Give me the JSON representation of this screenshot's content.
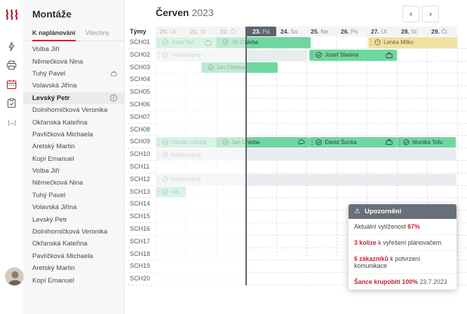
{
  "iconbar": {
    "icons": [
      "flash-icon",
      "printer-icon",
      "calendar-icon",
      "clipboard-icon",
      "resize-icon"
    ],
    "active_icon": "calendar-icon",
    "resize_glyph": "|↔|"
  },
  "sidebar": {
    "title": "Montáže",
    "tabs": [
      {
        "label": "K naplánování",
        "active": true
      },
      {
        "label": "Všechny",
        "active": false
      }
    ],
    "people": [
      {
        "name": "Volba Jiří"
      },
      {
        "name": "Němečková Nina"
      },
      {
        "name": "Tuhý Pavel",
        "briefcase": true
      },
      {
        "name": "Volavská Jiřina"
      },
      {
        "name": "Levský Petr",
        "selected": true,
        "info": true
      },
      {
        "name": "Dolnihorničková Veronika"
      },
      {
        "name": "Okřanská Kateřina"
      },
      {
        "name": "Pavlíčková Michaela"
      },
      {
        "name": "Aretský Martin"
      },
      {
        "name": "Kopí Emanuel"
      },
      {
        "name": "Volba Jiří"
      },
      {
        "name": "Němečková Nina"
      },
      {
        "name": "Tuhý Pavel"
      },
      {
        "name": "Volavská Jiřina"
      },
      {
        "name": "Levský Petr"
      },
      {
        "name": "Dolnihorničková Veronika"
      },
      {
        "name": "Okřanská Kateřina"
      },
      {
        "name": "Pavlíčková Michaela"
      },
      {
        "name": "Aretský Martin"
      },
      {
        "name": "Kopí Emanuel"
      }
    ]
  },
  "header": {
    "month": "Červen",
    "year": "2023",
    "prev": "‹",
    "next": "›"
  },
  "timeline": {
    "teams_label": "Týmy",
    "days": [
      {
        "num": "20.",
        "dow": "Út",
        "past": true
      },
      {
        "num": "21.",
        "dow": "St",
        "past": true
      },
      {
        "num": "22.",
        "dow": "Čt",
        "past": true
      },
      {
        "num": "23.",
        "dow": "Pá",
        "today": true
      },
      {
        "num": "24.",
        "dow": "So"
      },
      {
        "num": "25.",
        "dow": "Ne"
      },
      {
        "num": "26.",
        "dow": "Po"
      },
      {
        "num": "27.",
        "dow": "Út"
      },
      {
        "num": "28.",
        "dow": "St"
      },
      {
        "num": "29.",
        "dow": "Čt"
      }
    ],
    "rows": [
      "SCH01",
      "SCH02",
      "SCH03",
      "SCH04",
      "SCH05",
      "SCH06",
      "SCH07",
      "SCH08",
      "SCH09",
      "SCH10",
      "SCH11",
      "SCH12",
      "SCH13",
      "SCH14",
      "SCH15",
      "SCH16",
      "SCH17",
      "SCH18",
      "SCH19",
      "SCH20"
    ],
    "bars": [
      {
        "row": "SCH01",
        "start": 0,
        "end": 2,
        "label": "Josef Syr",
        "type": "light",
        "icon": "check",
        "right_icon": "briefcase"
      },
      {
        "row": "SCH01",
        "start": 2,
        "end": 5.15,
        "label": "Jiří Chleba",
        "type": "green",
        "icon": "check"
      },
      {
        "row": "SCH01",
        "start": 7.05,
        "end": 10,
        "label": "Lenka Milko",
        "type": "yellow",
        "icon": "alert"
      },
      {
        "row": "SCH02",
        "start": 0,
        "end": 5,
        "label": "Nedostupný",
        "type": "gray",
        "icon": "slash"
      },
      {
        "row": "SCH02",
        "start": 5.1,
        "end": 8,
        "label": "Josef Slanina",
        "type": "green",
        "icon": "check",
        "right_icon": "briefcase"
      },
      {
        "row": "SCH03",
        "start": 1.5,
        "end": 4.05,
        "label": "Jan Chleba",
        "type": "green",
        "icon": "check"
      },
      {
        "row": "SCH09",
        "start": 0,
        "end": 2,
        "label": "Václav Lampa",
        "type": "light",
        "icon": "check"
      },
      {
        "row": "SCH09",
        "start": 2,
        "end": 5.1,
        "label": "Jan Chleba",
        "type": "green",
        "icon": "check",
        "right_icon": "cloud"
      },
      {
        "row": "SCH09",
        "start": 5.1,
        "end": 8,
        "label": "David Šunka",
        "type": "green",
        "icon": "check",
        "right_icon": "briefcase"
      },
      {
        "row": "SCH09",
        "start": 8,
        "end": 9.95,
        "label": "Monika Tofu",
        "type": "green",
        "icon": "check"
      },
      {
        "row": "SCH10",
        "start": 0,
        "end": 9.95,
        "label": "Nedostupný",
        "type": "gray",
        "icon": "slash"
      },
      {
        "row": "SCH12",
        "start": 0,
        "end": 9.95,
        "label": "Nedostupný",
        "type": "gray",
        "icon": "slash"
      },
      {
        "row": "SCH13",
        "start": 0,
        "end": 1,
        "label": "Vá..",
        "type": "light",
        "icon": "check"
      }
    ],
    "today_index": 3
  },
  "notification": {
    "warn_icon": "⚠",
    "title": "Upozornění",
    "items": [
      {
        "pre": "Aktuální vytíženost ",
        "strong": "67%",
        "post": ""
      },
      {
        "pre": "",
        "strong": "3 kolize",
        "post": " k vyřešení plánovačem"
      },
      {
        "pre": "",
        "strong": "6 zákazníků",
        "post": " k potvrzení komunikace"
      },
      {
        "pre": "",
        "strong": "Šance krupobití 100%",
        "post": " 23.7.2023",
        "post_is_date": true
      }
    ]
  },
  "colors": {
    "accent_red": "#c52334",
    "brand_red": "#b5121f",
    "bar_green": "#6fd7a0",
    "bar_green_light": "#a9e5c6",
    "bar_gray": "#e8ecef",
    "bar_yellow": "#f2e2a0",
    "today_badge": "#5d6570",
    "notif_header": "#68707a"
  }
}
